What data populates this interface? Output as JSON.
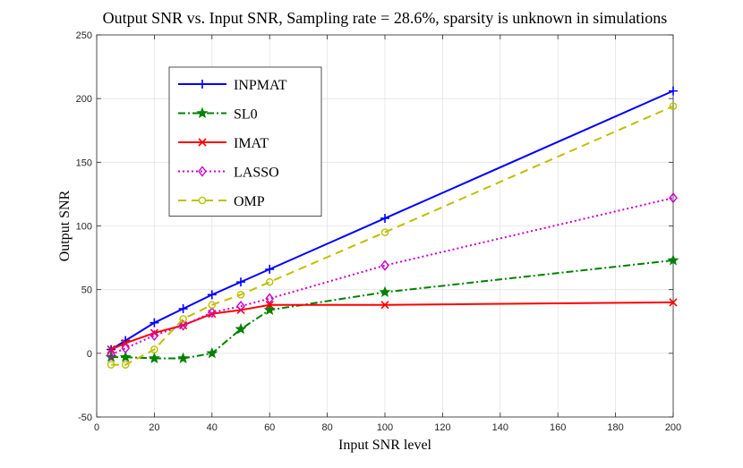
{
  "chart_data": {
    "type": "line",
    "title": "Output SNR vs. Input SNR, Sampling rate = 28.6%, sparsity is unknown in simulations",
    "xlabel": "Input SNR level",
    "ylabel": "Output SNR",
    "xlim": [
      0,
      200
    ],
    "ylim": [
      -50,
      250
    ],
    "xticks": [
      0,
      20,
      40,
      60,
      80,
      100,
      120,
      140,
      160,
      180,
      200
    ],
    "yticks": [
      -50,
      0,
      50,
      100,
      150,
      200,
      250
    ],
    "grid": true,
    "legend_position": "top-left",
    "x": [
      5,
      10,
      20,
      30,
      40,
      50,
      60,
      100,
      200
    ],
    "series": [
      {
        "name": "INPMAT",
        "values": [
          3,
          10,
          24,
          35,
          46,
          56,
          66,
          106,
          206
        ],
        "color": "#0000ff",
        "line_style": "solid",
        "marker": "plus"
      },
      {
        "name": "SL0",
        "values": [
          -3,
          -3,
          -4,
          -4,
          0,
          19,
          34,
          48,
          73
        ],
        "color": "#008000",
        "line_style": "dashdot",
        "marker": "star"
      },
      {
        "name": "IMAT",
        "values": [
          3,
          8,
          16,
          22,
          31,
          34,
          38,
          38,
          40
        ],
        "color": "#ff0000",
        "line_style": "solid",
        "marker": "x"
      },
      {
        "name": "LASSO",
        "values": [
          -1,
          4,
          14,
          22,
          32,
          37,
          43,
          69,
          122
        ],
        "color": "#cc00cc",
        "line_style": "dotted",
        "marker": "diamond"
      },
      {
        "name": "OMP",
        "values": [
          -9,
          -9,
          3,
          27,
          38,
          46,
          56,
          95,
          194
        ],
        "color": "#bfbf00",
        "line_style": "dashed",
        "marker": "circle"
      }
    ]
  }
}
